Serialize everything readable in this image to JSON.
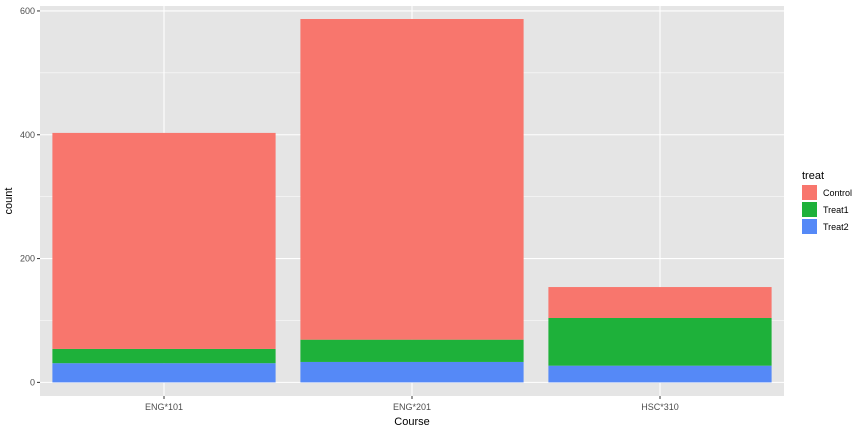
{
  "chart_data": {
    "type": "bar",
    "stacked": true,
    "categories": [
      "ENG*101",
      "ENG*201",
      "HSC*310"
    ],
    "series": [
      {
        "name": "Control",
        "values": [
          349,
          518,
          50
        ],
        "color": "#F8766D"
      },
      {
        "name": "Treat1",
        "values": [
          23,
          36,
          77
        ],
        "color": "#1EB13A"
      },
      {
        "name": "Treat2",
        "values": [
          31,
          33,
          27
        ],
        "color": "#5589F7"
      }
    ],
    "stack_order_bottom_to_top": [
      "Treat2",
      "Treat1",
      "Control"
    ],
    "xlabel": "Course",
    "ylabel": "count",
    "ylim": [
      -22,
      608
    ],
    "yticks": [
      0,
      200,
      400,
      600
    ],
    "grid": true,
    "panel_background": "#E5E5E5",
    "grid_color": "#FFFFFF",
    "legend": {
      "title": "treat",
      "position": "right"
    }
  }
}
